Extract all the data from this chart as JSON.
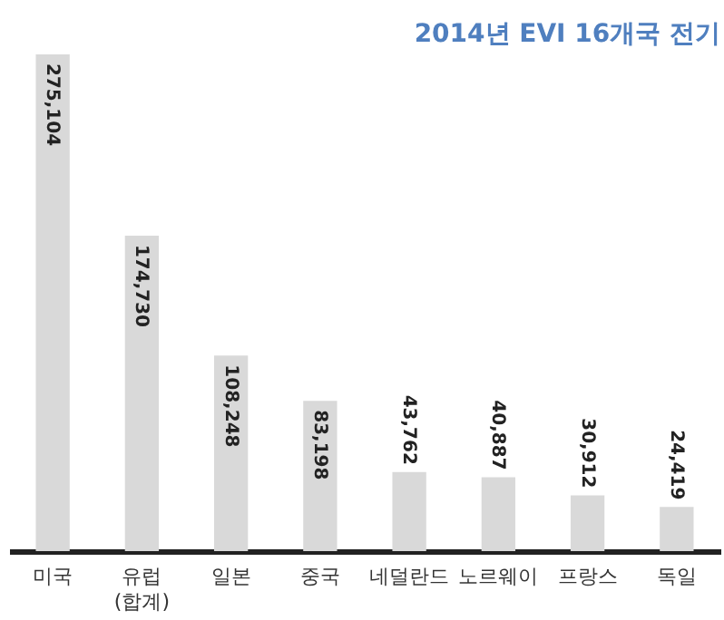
{
  "chart_data": {
    "type": "bar",
    "title": "2014년 EVI 16개국 전기",
    "categories": [
      "미국",
      "유럽\n(합계)",
      "일본",
      "중국",
      "네덜란드",
      "노르웨이",
      "프랑스",
      "독일"
    ],
    "values": [
      275104,
      174730,
      108248,
      83198,
      43762,
      40887,
      30912,
      24419
    ],
    "value_labels": [
      "275,104",
      "174,730",
      "108,248",
      "83,198",
      "43,762",
      "40,887",
      "30,912",
      "24,419"
    ],
    "color": "#d9d9d9",
    "grid": false
  }
}
